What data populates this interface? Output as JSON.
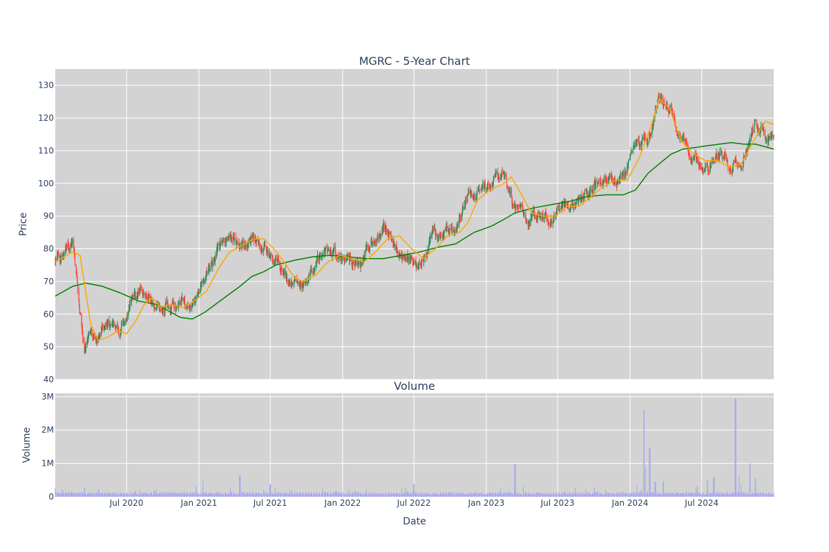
{
  "chart_data": [
    {
      "type": "candlestick",
      "title": "MGRC - 5-Year Chart",
      "ylabel": "Price",
      "ylim": [
        40,
        135
      ],
      "yticks": [
        40,
        50,
        60,
        70,
        80,
        90,
        100,
        110,
        120,
        130
      ],
      "xrange": [
        "2020-01-02",
        "2024-12-31"
      ],
      "grid": true,
      "background": "#d3d3d3",
      "colors": {
        "up": "#2e8b57",
        "down": "#ff4136",
        "ma_short": "#ffa500",
        "ma_long": "#008000"
      },
      "series": [
        {
          "kind": "candles",
          "monthly_close": [
            [
              "2020-01",
              77
            ],
            [
              "2020-02",
              81
            ],
            [
              "2020-03",
              52
            ],
            [
              "2020-04",
              53
            ],
            [
              "2020-05",
              56
            ],
            [
              "2020-06",
              53
            ],
            [
              "2020-07",
              63
            ],
            [
              "2020-08",
              67
            ],
            [
              "2020-09",
              62
            ],
            [
              "2020-10",
              63
            ],
            [
              "2020-11",
              64
            ],
            [
              "2020-12",
              64
            ],
            [
              "2021-01",
              72
            ],
            [
              "2021-02",
              80
            ],
            [
              "2021-03",
              82
            ],
            [
              "2021-04",
              82
            ],
            [
              "2021-05",
              84
            ],
            [
              "2021-06",
              80
            ],
            [
              "2021-07",
              76
            ],
            [
              "2021-08",
              70
            ],
            [
              "2021-09",
              70
            ],
            [
              "2021-10",
              74
            ],
            [
              "2021-11",
              78
            ],
            [
              "2021-12",
              79
            ],
            [
              "2022-01",
              77
            ],
            [
              "2022-02",
              76
            ],
            [
              "2022-03",
              83
            ],
            [
              "2022-04",
              86
            ],
            [
              "2022-05",
              82
            ],
            [
              "2022-06",
              78
            ],
            [
              "2022-07",
              76
            ],
            [
              "2022-08",
              84
            ],
            [
              "2022-09",
              85
            ],
            [
              "2022-10",
              84
            ],
            [
              "2022-11",
              97
            ],
            [
              "2022-12",
              98
            ],
            [
              "2023-01",
              99
            ],
            [
              "2023-02",
              104
            ],
            [
              "2023-03",
              93
            ],
            [
              "2023-04",
              88
            ],
            [
              "2023-05",
              90
            ],
            [
              "2023-06",
              90
            ],
            [
              "2023-07",
              94
            ],
            [
              "2023-08",
              92
            ],
            [
              "2023-09",
              98
            ],
            [
              "2023-10",
              101
            ],
            [
              "2023-11",
              102
            ],
            [
              "2023-12",
              101
            ],
            [
              "2024-01",
              113
            ],
            [
              "2024-02",
              112
            ],
            [
              "2024-03",
              127
            ],
            [
              "2024-04",
              122
            ],
            [
              "2024-05",
              112
            ],
            [
              "2024-06",
              108
            ],
            [
              "2024-07",
              105
            ],
            [
              "2024-08",
              108
            ],
            [
              "2024-09",
              105
            ],
            [
              "2024-10",
              108
            ],
            [
              "2024-11",
              119
            ],
            [
              "2024-12",
              114
            ]
          ]
        },
        {
          "kind": "line",
          "role": "ma_short",
          "points": [
            [
              "2020-01-02",
              76
            ],
            [
              "2020-02-15",
              79
            ],
            [
              "2020-03-05",
              78
            ],
            [
              "2020-04-01",
              57
            ],
            [
              "2020-04-20",
              52
            ],
            [
              "2020-05-15",
              53
            ],
            [
              "2020-06-10",
              55
            ],
            [
              "2020-07-01",
              54
            ],
            [
              "2020-07-25",
              58
            ],
            [
              "2020-08-15",
              63
            ],
            [
              "2020-09-05",
              65
            ],
            [
              "2020-09-25",
              62
            ],
            [
              "2020-10-20",
              63
            ],
            [
              "2020-11-20",
              62
            ],
            [
              "2020-12-20",
              64
            ],
            [
              "2021-01-20",
              67
            ],
            [
              "2021-02-20",
              74
            ],
            [
              "2021-03-20",
              79
            ],
            [
              "2021-04-20",
              81
            ],
            [
              "2021-05-20",
              83
            ],
            [
              "2021-06-15",
              83
            ],
            [
              "2021-07-10",
              80
            ],
            [
              "2021-08-05",
              76
            ],
            [
              "2021-09-01",
              71
            ],
            [
              "2021-09-25",
              70
            ],
            [
              "2021-10-25",
              72
            ],
            [
              "2021-11-25",
              76
            ],
            [
              "2021-12-25",
              78
            ],
            [
              "2022-01-25",
              77
            ],
            [
              "2022-02-25",
              76
            ],
            [
              "2022-03-25",
              79
            ],
            [
              "2022-04-25",
              83
            ],
            [
              "2022-05-25",
              84
            ],
            [
              "2022-06-25",
              80
            ],
            [
              "2022-07-25",
              77
            ],
            [
              "2022-08-25",
              80
            ],
            [
              "2022-09-25",
              84
            ],
            [
              "2022-10-25",
              85
            ],
            [
              "2022-11-15",
              88
            ],
            [
              "2022-12-10",
              95
            ],
            [
              "2023-01-10",
              98
            ],
            [
              "2023-02-15",
              100
            ],
            [
              "2023-03-05",
              102
            ],
            [
              "2023-03-25",
              98
            ],
            [
              "2023-04-25",
              91
            ],
            [
              "2023-05-25",
              90
            ],
            [
              "2023-06-25",
              90
            ],
            [
              "2023-07-25",
              93
            ],
            [
              "2023-08-25",
              93
            ],
            [
              "2023-09-25",
              96
            ],
            [
              "2023-10-25",
              99
            ],
            [
              "2023-11-25",
              101
            ],
            [
              "2023-12-25",
              101
            ],
            [
              "2024-01-25",
              108
            ],
            [
              "2024-02-25",
              118
            ],
            [
              "2024-03-15",
              126
            ],
            [
              "2024-04-10",
              123
            ],
            [
              "2024-05-10",
              113
            ],
            [
              "2024-06-10",
              109
            ],
            [
              "2024-07-10",
              107
            ],
            [
              "2024-08-10",
              107
            ],
            [
              "2024-09-10",
              105
            ],
            [
              "2024-10-10",
              106
            ],
            [
              "2024-11-10",
              113
            ],
            [
              "2024-12-10",
              119
            ],
            [
              "2024-12-31",
              118
            ]
          ]
        },
        {
          "kind": "line",
          "role": "ma_long",
          "points": [
            [
              "2020-01-02",
              65.5
            ],
            [
              "2020-02-15",
              68.5
            ],
            [
              "2020-03-20",
              69.5
            ],
            [
              "2020-05-01",
              68.5
            ],
            [
              "2020-06-15",
              66.5
            ],
            [
              "2020-08-01",
              64
            ],
            [
              "2020-09-15",
              63
            ],
            [
              "2020-10-15",
              61
            ],
            [
              "2020-11-15",
              59
            ],
            [
              "2020-12-15",
              58.5
            ],
            [
              "2021-01-15",
              60.5
            ],
            [
              "2021-03-01",
              64.5
            ],
            [
              "2021-04-15",
              68.5
            ],
            [
              "2021-05-15",
              71.5
            ],
            [
              "2021-06-15",
              73
            ],
            [
              "2021-07-15",
              75
            ],
            [
              "2021-09-01",
              76.5
            ],
            [
              "2021-10-15",
              77.5
            ],
            [
              "2021-12-01",
              78
            ],
            [
              "2022-01-15",
              77.5
            ],
            [
              "2022-03-01",
              77
            ],
            [
              "2022-04-15",
              77
            ],
            [
              "2022-06-01",
              78
            ],
            [
              "2022-07-15",
              79
            ],
            [
              "2022-09-01",
              80.5
            ],
            [
              "2022-10-15",
              81.5
            ],
            [
              "2022-12-01",
              85
            ],
            [
              "2023-01-15",
              87
            ],
            [
              "2023-02-15",
              89
            ],
            [
              "2023-03-15",
              91
            ],
            [
              "2023-05-01",
              92.5
            ],
            [
              "2023-06-15",
              93.5
            ],
            [
              "2023-08-01",
              94.5
            ],
            [
              "2023-09-15",
              96
            ],
            [
              "2023-11-01",
              96.5
            ],
            [
              "2023-12-15",
              96.5
            ],
            [
              "2024-01-15",
              98
            ],
            [
              "2024-02-15",
              103
            ],
            [
              "2024-03-15",
              106
            ],
            [
              "2024-04-15",
              109
            ],
            [
              "2024-05-15",
              110.5
            ],
            [
              "2024-06-15",
              111
            ],
            [
              "2024-07-15",
              111.5
            ],
            [
              "2024-08-15",
              112
            ],
            [
              "2024-09-15",
              112.5
            ],
            [
              "2024-10-15",
              112
            ],
            [
              "2024-11-15",
              112
            ],
            [
              "2024-12-31",
              110.5
            ]
          ]
        }
      ]
    },
    {
      "type": "bar",
      "title": "Volume",
      "ylabel": "Volume",
      "xlabel": "Date",
      "ylim": [
        0,
        3100000
      ],
      "yticks": [
        {
          "value": 0,
          "label": "0"
        },
        {
          "value": 1000000,
          "label": "1M"
        },
        {
          "value": 2000000,
          "label": "2M"
        },
        {
          "value": 3000000,
          "label": "3M"
        }
      ],
      "xticks": [
        {
          "date": "2020-07-01",
          "label": "Jul 2020"
        },
        {
          "date": "2021-01-01",
          "label": "Jan 2021"
        },
        {
          "date": "2021-07-01",
          "label": "Jul 2021"
        },
        {
          "date": "2022-01-01",
          "label": "Jan 2022"
        },
        {
          "date": "2022-07-01",
          "label": "Jul 2022"
        },
        {
          "date": "2023-01-01",
          "label": "Jan 2023"
        },
        {
          "date": "2023-07-01",
          "label": "Jul 2023"
        },
        {
          "date": "2024-01-01",
          "label": "Jan 2024"
        },
        {
          "date": "2024-07-01",
          "label": "Jul 2024"
        }
      ],
      "bar_color": "#a6a6f0",
      "baseline_volume": 110000,
      "spikes": [
        [
          "2020-01-20",
          220000
        ],
        [
          "2020-03-16",
          280000
        ],
        [
          "2020-04-20",
          230000
        ],
        [
          "2020-09-10",
          180000
        ],
        [
          "2021-01-10",
          480000
        ],
        [
          "2021-04-15",
          640000
        ],
        [
          "2021-07-01",
          370000
        ],
        [
          "2021-12-15",
          170000
        ],
        [
          "2022-07-01",
          390000
        ],
        [
          "2023-03-15",
          970000
        ],
        [
          "2023-10-10",
          140000
        ],
        [
          "2024-01-20",
          330000
        ],
        [
          "2024-02-05",
          2600000
        ],
        [
          "2024-02-10",
          900000
        ],
        [
          "2024-02-20",
          1450000
        ],
        [
          "2024-03-05",
          450000
        ],
        [
          "2024-03-25",
          450000
        ],
        [
          "2024-07-15",
          490000
        ],
        [
          "2024-08-01",
          590000
        ],
        [
          "2024-09-25",
          2950000
        ],
        [
          "2024-10-05",
          650000
        ],
        [
          "2024-11-01",
          1000000
        ],
        [
          "2024-11-15",
          560000
        ]
      ]
    }
  ]
}
